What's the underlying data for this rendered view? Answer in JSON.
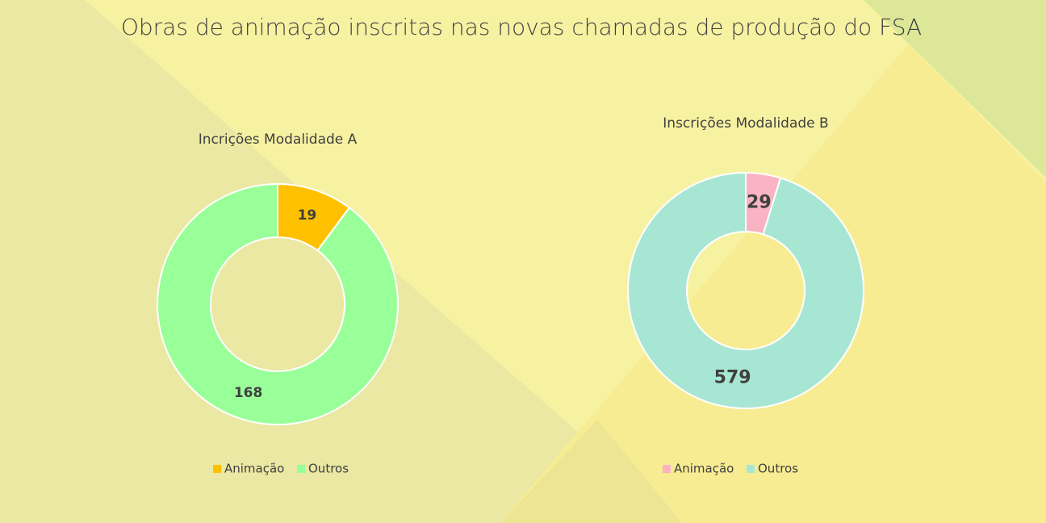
{
  "title": "Obras de animação inscritas nas novas chamadas de produção do FSA",
  "chart_data": [
    {
      "type": "donut",
      "title": "Incrições Modalidade A",
      "categories": [
        "Animação",
        "Outros"
      ],
      "values": [
        19,
        168
      ],
      "colors": [
        "#FFC000",
        "#99FF99"
      ]
    },
    {
      "type": "donut",
      "title": "Inscrições Modalidade B",
      "categories": [
        "Animação",
        "Outros"
      ],
      "values": [
        29,
        579
      ],
      "colors": [
        "#F9B3C2",
        "#A8E6D4"
      ]
    }
  ]
}
